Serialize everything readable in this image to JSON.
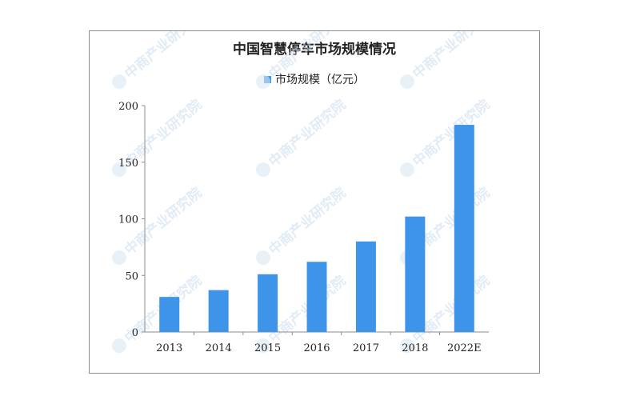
{
  "chart_data": {
    "type": "bar",
    "title": "中国智慧停车市场规模情况",
    "categories": [
      "2013",
      "2014",
      "2015",
      "2016",
      "2017",
      "2018",
      "2022E"
    ],
    "series": [
      {
        "name": "市场规模（亿元）",
        "values": [
          31,
          37,
          51,
          62,
          80,
          102,
          183
        ]
      }
    ],
    "xlabel": "",
    "ylabel": "",
    "ylim": [
      0,
      200
    ],
    "yticks": [
      0,
      50,
      100,
      150,
      200
    ],
    "grid": false,
    "legend": "top-center",
    "colors": {
      "bar": "#3d94e8",
      "axis": "#8c8c8c",
      "text": "#222222"
    }
  },
  "watermark": "中商产业研究院"
}
